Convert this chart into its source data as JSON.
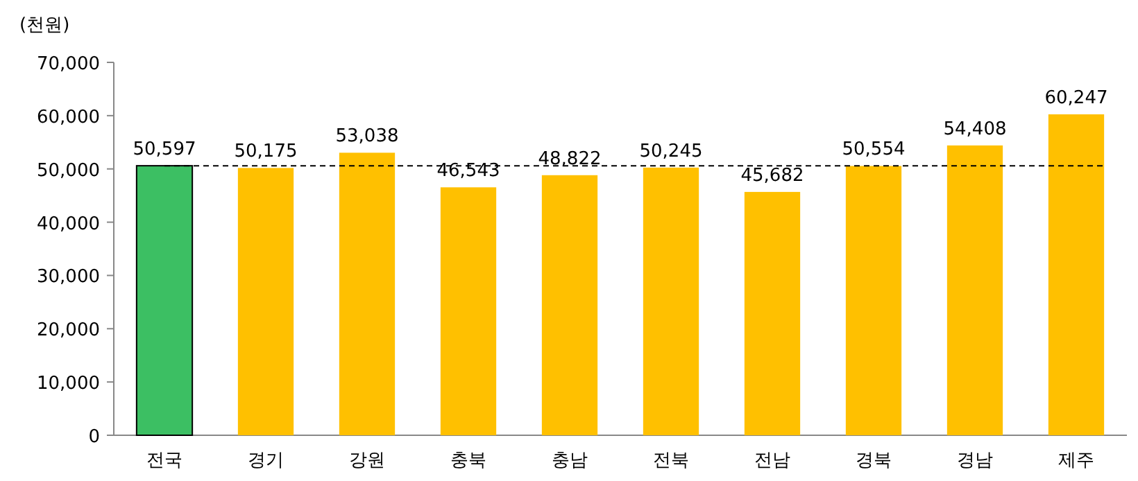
{
  "chart_data": {
    "type": "bar",
    "ylabel": "(천원)",
    "categories": [
      "전국",
      "경기",
      "강원",
      "충북",
      "충남",
      "전북",
      "전남",
      "경북",
      "경남",
      "제주"
    ],
    "values": [
      50597,
      50175,
      53038,
      46543,
      48822,
      50245,
      45682,
      50554,
      54408,
      60247
    ],
    "colors": [
      "#3cbf63",
      "#ffc000",
      "#ffc000",
      "#ffc000",
      "#ffc000",
      "#ffc000",
      "#ffc000",
      "#ffc000",
      "#ffc000",
      "#ffc000"
    ],
    "value_labels": [
      "50,597",
      "50,175",
      "53,038",
      "46,543",
      "48,822",
      "50,245",
      "45,682",
      "50,554",
      "54,408",
      "60,247"
    ],
    "ylim": [
      0,
      70000
    ],
    "yticks": [
      {
        "value": 0,
        "label": "0"
      },
      {
        "value": 10000,
        "label": "10,000"
      },
      {
        "value": 20000,
        "label": "20,000"
      },
      {
        "value": 30000,
        "label": "30,000"
      },
      {
        "value": 40000,
        "label": "40,000"
      },
      {
        "value": 50000,
        "label": "50,000"
      },
      {
        "value": 60000,
        "label": "60,000"
      },
      {
        "value": 70000,
        "label": "70,000"
      }
    ],
    "ref_lines": [
      {
        "axis": "y",
        "value": 50597,
        "line_style": "dashed",
        "color": "#000000"
      }
    ],
    "grid": false
  }
}
